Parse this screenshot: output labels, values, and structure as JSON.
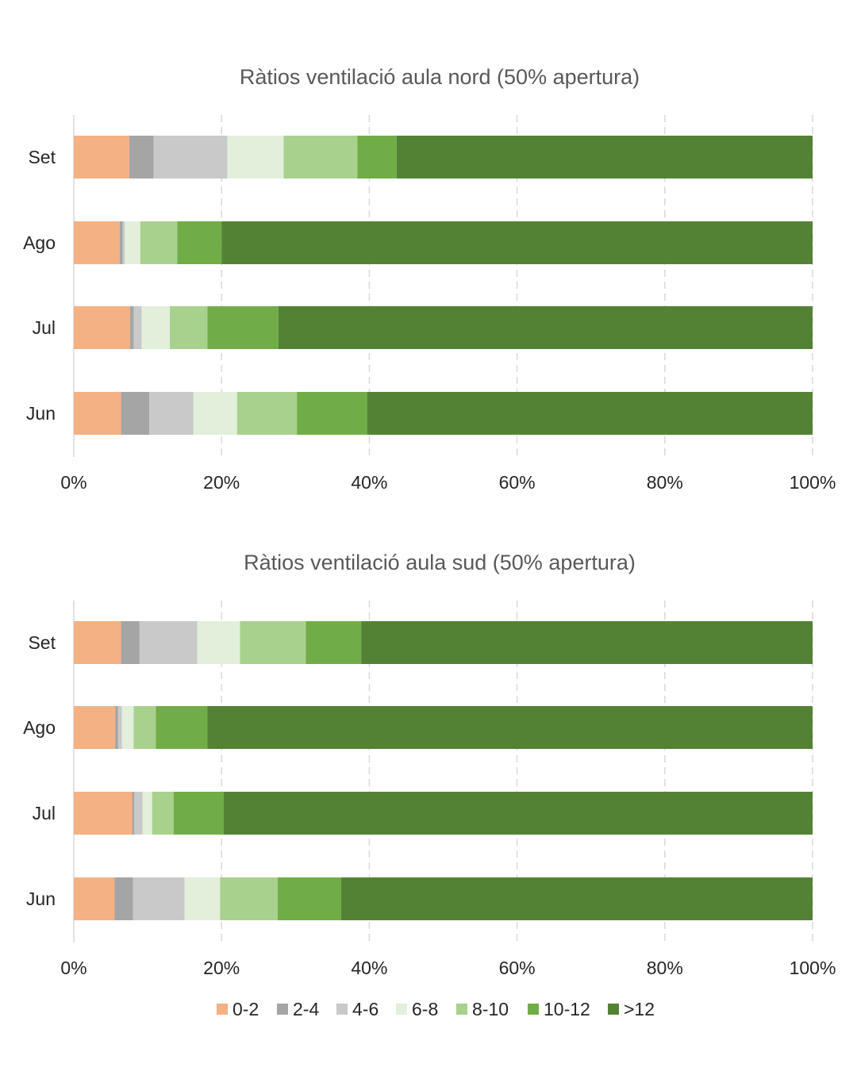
{
  "chart_data": [
    {
      "type": "bar",
      "orientation": "horizontal",
      "stacked": "percent",
      "title": "Ràtios ventilació aula nord (50% apertura)",
      "categories": [
        "Set",
        "Ago",
        "Jul",
        "Jun"
      ],
      "x_ticks": [
        "0%",
        "20%",
        "40%",
        "60%",
        "80%",
        "100%"
      ],
      "xlim": [
        0,
        100
      ],
      "grid": "vertical dashed",
      "series": [
        {
          "name": "0-2",
          "color": "#F4B183",
          "values": [
            7.5,
            6.2,
            7.6,
            6.4
          ]
        },
        {
          "name": "2-4",
          "color": "#A5A5A5",
          "values": [
            3.3,
            0.4,
            0.5,
            3.8
          ]
        },
        {
          "name": "4-6",
          "color": "#C9C9C9",
          "values": [
            10.0,
            0.3,
            1.1,
            6.0
          ]
        },
        {
          "name": "6-8",
          "color": "#E2EFDA",
          "values": [
            7.6,
            2.1,
            3.8,
            5.9
          ]
        },
        {
          "name": "8-10",
          "color": "#A9D18E",
          "values": [
            10.0,
            5.0,
            5.1,
            8.1
          ]
        },
        {
          "name": "10-12",
          "color": "#70AD47",
          "values": [
            5.3,
            6.0,
            9.6,
            9.5
          ]
        },
        {
          "name": ">12",
          "color": "#548235",
          "values": [
            56.3,
            80.0,
            72.3,
            60.3
          ]
        }
      ]
    },
    {
      "type": "bar",
      "orientation": "horizontal",
      "stacked": "percent",
      "title": "Ràtios ventilació aula sud (50% apertura)",
      "categories": [
        "Set",
        "Ago",
        "Jul",
        "Jun"
      ],
      "x_ticks": [
        "0%",
        "20%",
        "40%",
        "60%",
        "80%",
        "100%"
      ],
      "xlim": [
        0,
        100
      ],
      "grid": "vertical dashed",
      "legend": "bottom",
      "series": [
        {
          "name": "0-2",
          "color": "#F4B183",
          "values": [
            6.4,
            5.6,
            7.9,
            5.5
          ]
        },
        {
          "name": "2-4",
          "color": "#A5A5A5",
          "values": [
            2.5,
            0.4,
            0.3,
            2.5
          ]
        },
        {
          "name": "4-6",
          "color": "#C9C9C9",
          "values": [
            7.8,
            0.5,
            1.1,
            7.0
          ]
        },
        {
          "name": "6-8",
          "color": "#E2EFDA",
          "values": [
            5.8,
            1.6,
            1.3,
            4.8
          ]
        },
        {
          "name": "8-10",
          "color": "#A9D18E",
          "values": [
            8.9,
            3.0,
            2.9,
            7.8
          ]
        },
        {
          "name": "10-12",
          "color": "#70AD47",
          "values": [
            7.5,
            7.0,
            6.8,
            8.6
          ]
        },
        {
          "name": ">12",
          "color": "#548235",
          "values": [
            61.1,
            81.9,
            79.7,
            63.8
          ]
        }
      ]
    }
  ]
}
